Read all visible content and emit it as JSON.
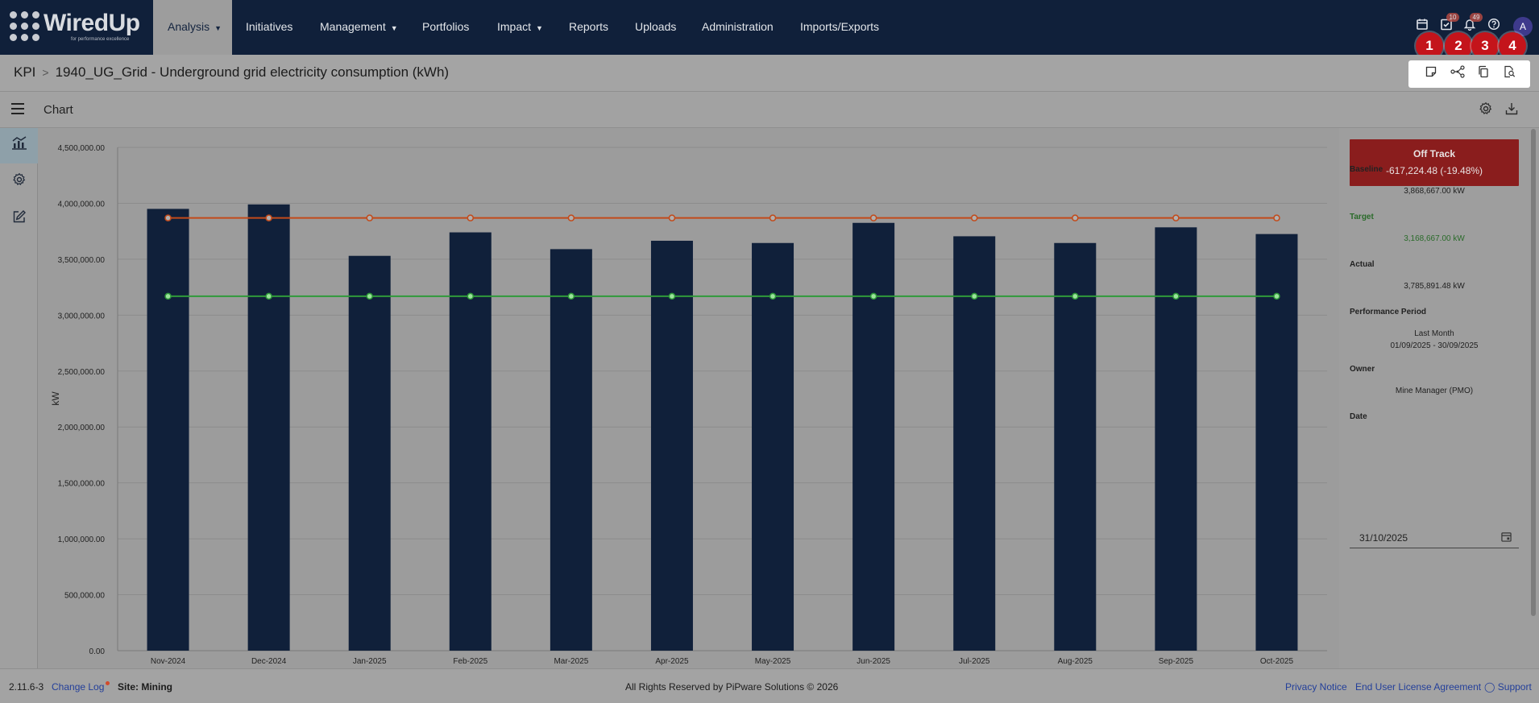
{
  "nav": {
    "logo_text": "WiredUp",
    "logo_tagline": "for performance excellence",
    "items": [
      {
        "label": "Analysis",
        "has_caret": true,
        "active": true
      },
      {
        "label": "Initiatives"
      },
      {
        "label": "Management",
        "has_caret": true
      },
      {
        "label": "Portfolios"
      },
      {
        "label": "Impact",
        "has_caret": true
      },
      {
        "label": "Reports"
      },
      {
        "label": "Uploads"
      },
      {
        "label": "Administration"
      },
      {
        "label": "Imports/Exports"
      }
    ],
    "icons": [
      {
        "name": "calendar-icon"
      },
      {
        "name": "tasks-icon",
        "badge": "10"
      },
      {
        "name": "bell-icon",
        "badge": "49"
      },
      {
        "name": "help-icon"
      }
    ],
    "avatar": "A"
  },
  "breadcrumb": {
    "root": "KPI",
    "title": "1940_UG_Grid - Underground grid electricity consumption (kWh)"
  },
  "actions": [
    {
      "name": "note-icon",
      "callout": "1"
    },
    {
      "name": "network-icon",
      "callout": "2"
    },
    {
      "name": "copy-icon",
      "callout": "3"
    },
    {
      "name": "search-document-icon",
      "callout": "4"
    }
  ],
  "toolbar": {
    "title": "Chart"
  },
  "chart_data": {
    "type": "bar",
    "ylabel": "kW",
    "ylim": [
      0,
      4500000
    ],
    "yticks": [
      "0.00",
      "500,000.00",
      "1,000,000.00",
      "1,500,000.00",
      "2,000,000.00",
      "2,500,000.00",
      "3,000,000.00",
      "3,500,000.00",
      "4,000,000.00",
      "4,500,000.00"
    ],
    "categories": [
      "Nov-2024",
      "Dec-2024",
      "Jan-2025",
      "Feb-2025",
      "Mar-2025",
      "Apr-2025",
      "May-2025",
      "Jun-2025",
      "Jul-2025",
      "Aug-2025",
      "Sep-2025",
      "Oct-2025"
    ],
    "values": [
      3950000,
      3990000,
      3530000,
      3740000,
      3590000,
      3665000,
      3645000,
      3825000,
      3705000,
      3645000,
      3785000,
      3725000
    ],
    "lines": [
      {
        "value": 3868667,
        "color": "#c24a1a"
      },
      {
        "value": 3168667,
        "color": "#2f9a3a"
      }
    ],
    "bar_color": "#10203a",
    "grid": true
  },
  "panel": {
    "status_title": "Off Track",
    "status_value": "-617,224.48 (-19.48%)",
    "baseline_label": "Baseline",
    "baseline_value": "3,868,667.00 kW",
    "target_label": "Target",
    "target_value": "3,168,667.00 kW",
    "actual_label": "Actual",
    "actual_value": "3,785,891.48 kW",
    "period_label": "Performance Period",
    "period_name": "Last Month",
    "period_range": "01/09/2025 - 30/09/2025",
    "owner_label": "Owner",
    "owner_value": "Mine Manager (PMO)",
    "date_label": "Date",
    "date_value": "31/10/2025"
  },
  "footer": {
    "version": "2.11.6-3",
    "changelog": "Change Log",
    "site": "Site: Mining",
    "copyright": "All Rights Reserved by PiPware Solutions © 2026",
    "privacy": "Privacy Notice",
    "eula": "End User License Agreement",
    "support": "Support"
  },
  "colors": {
    "nav_bg": "#10203a",
    "status_bg": "#8a1d1d",
    "target_text": "#2a6b2a",
    "callout": "#c4141b"
  }
}
